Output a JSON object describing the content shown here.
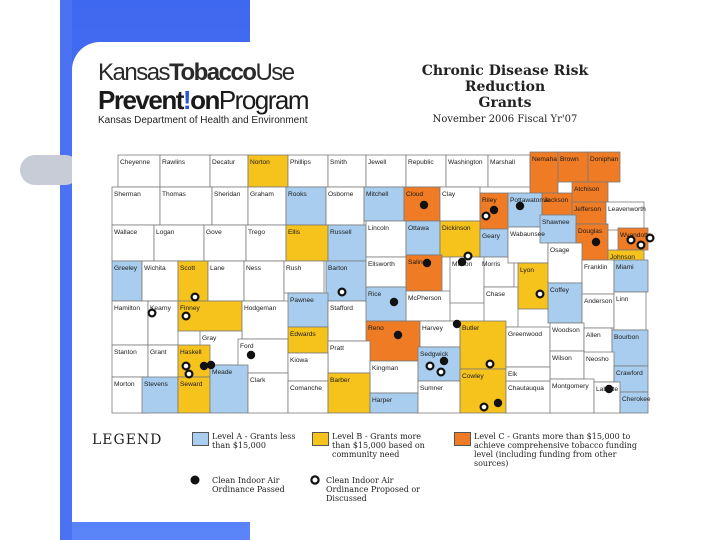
{
  "header": {
    "logo_word1": "Kansas",
    "logo_word2": "Tobacco",
    "logo_word3": "Use",
    "logo_word4": "Prevent",
    "logo_bang": "!",
    "logo_word5": "on",
    "logo_word6": "Program",
    "logo_sub": "Kansas Department of Health and Environment",
    "title_line1": "Chronic Disease Risk Reduction",
    "title_line2": "Grants",
    "title_line3": "November 2006 Fiscal Yr'07"
  },
  "colors": {
    "level_a": "#a9cdee",
    "level_b": "#f6c21c",
    "level_c": "#ef7b24",
    "unfunded": "#ffffff",
    "border": "#7a7a7a",
    "slide_blue": "#4a72f2"
  },
  "legend": {
    "title": "LEGEND",
    "level_a": "Level A - Grants less than $15,000",
    "level_b": "Level B - Grants more than $15,000 based on community need",
    "level_c": "Level C - Grants more than $15,000 to achieve comprehensive tobacco funding level (including funding from other sources)",
    "passed": "Clean Indoor Air Ordinance Passed",
    "proposed": "Clean Indoor Air Ordinance Proposed or Discussed"
  },
  "counties": [
    {
      "name": "Cheyenne",
      "level": "none"
    },
    {
      "name": "Rawlins",
      "level": "none"
    },
    {
      "name": "Decatur",
      "level": "none"
    },
    {
      "name": "Norton",
      "level": "B"
    },
    {
      "name": "Phillips",
      "level": "none"
    },
    {
      "name": "Smith",
      "level": "none"
    },
    {
      "name": "Jewell",
      "level": "none"
    },
    {
      "name": "Republic",
      "level": "none"
    },
    {
      "name": "Washington",
      "level": "none"
    },
    {
      "name": "Marshall",
      "level": "none"
    },
    {
      "name": "Nemaha",
      "level": "C"
    },
    {
      "name": "Brown",
      "level": "C"
    },
    {
      "name": "Doniphan",
      "level": "C"
    },
    {
      "name": "Sherman",
      "level": "none"
    },
    {
      "name": "Thomas",
      "level": "none"
    },
    {
      "name": "Sheridan",
      "level": "none"
    },
    {
      "name": "Graham",
      "level": "none"
    },
    {
      "name": "Rooks",
      "level": "A"
    },
    {
      "name": "Osborne",
      "level": "none"
    },
    {
      "name": "Mitchell",
      "level": "A"
    },
    {
      "name": "Cloud",
      "level": "C"
    },
    {
      "name": "Clay",
      "level": "none"
    },
    {
      "name": "Riley",
      "level": "C"
    },
    {
      "name": "Pottawatomie",
      "level": "A"
    },
    {
      "name": "Jackson",
      "level": "C"
    },
    {
      "name": "Atchison",
      "level": "C"
    },
    {
      "name": "Jefferson",
      "level": "C"
    },
    {
      "name": "Leavenworth",
      "level": "none"
    },
    {
      "name": "Wyandotte",
      "level": "C"
    },
    {
      "name": "Wallace",
      "level": "none"
    },
    {
      "name": "Logan",
      "level": "none"
    },
    {
      "name": "Gove",
      "level": "none"
    },
    {
      "name": "Trego",
      "level": "none"
    },
    {
      "name": "Ellis",
      "level": "B"
    },
    {
      "name": "Russell",
      "level": "A"
    },
    {
      "name": "Lincoln",
      "level": "none"
    },
    {
      "name": "Ottawa",
      "level": "A"
    },
    {
      "name": "Dickinson",
      "level": "B"
    },
    {
      "name": "Geary",
      "level": "A"
    },
    {
      "name": "Morris",
      "level": "none"
    },
    {
      "name": "Wabaunsee",
      "level": "none"
    },
    {
      "name": "Shawnee",
      "level": "A"
    },
    {
      "name": "Douglas",
      "level": "C"
    },
    {
      "name": "Johnson",
      "level": "B"
    },
    {
      "name": "Greeley",
      "level": "A"
    },
    {
      "name": "Wichita",
      "level": "none"
    },
    {
      "name": "Scott",
      "level": "B"
    },
    {
      "name": "Lane",
      "level": "none"
    },
    {
      "name": "Ness",
      "level": "none"
    },
    {
      "name": "Rush",
      "level": "none"
    },
    {
      "name": "Barton",
      "level": "A"
    },
    {
      "name": "Ellsworth",
      "level": "none"
    },
    {
      "name": "Saline",
      "level": "C"
    },
    {
      "name": "McPherson",
      "level": "none"
    },
    {
      "name": "Marion",
      "level": "none"
    },
    {
      "name": "Chase",
      "level": "none"
    },
    {
      "name": "Lyon",
      "level": "B"
    },
    {
      "name": "Osage",
      "level": "none"
    },
    {
      "name": "Franklin",
      "level": "none"
    },
    {
      "name": "Miami",
      "level": "A"
    },
    {
      "name": "Hamilton",
      "level": "none"
    },
    {
      "name": "Kearny",
      "level": "none"
    },
    {
      "name": "Finney",
      "level": "B"
    },
    {
      "name": "Hodgeman",
      "level": "none"
    },
    {
      "name": "Pawnee",
      "level": "A"
    },
    {
      "name": "Stafford",
      "level": "none"
    },
    {
      "name": "Rice",
      "level": "A"
    },
    {
      "name": "Reno",
      "level": "C"
    },
    {
      "name": "Harvey",
      "level": "none"
    },
    {
      "name": "Butler",
      "level": "B"
    },
    {
      "name": "Greenwood",
      "level": "none"
    },
    {
      "name": "Coffey",
      "level": "A"
    },
    {
      "name": "Anderson",
      "level": "none"
    },
    {
      "name": "Linn",
      "level": "none"
    },
    {
      "name": "Gray",
      "level": "none"
    },
    {
      "name": "Ford",
      "level": "none"
    },
    {
      "name": "Edwards",
      "level": "B"
    },
    {
      "name": "Pratt",
      "level": "none"
    },
    {
      "name": "Kingman",
      "level": "none"
    },
    {
      "name": "Sedgwick",
      "level": "A"
    },
    {
      "name": "Woodson",
      "level": "none"
    },
    {
      "name": "Allen",
      "level": "none"
    },
    {
      "name": "Bourbon",
      "level": "A"
    },
    {
      "name": "Stanton",
      "level": "none"
    },
    {
      "name": "Grant",
      "level": "none"
    },
    {
      "name": "Haskell",
      "level": "B"
    },
    {
      "name": "Kiowa",
      "level": "none"
    },
    {
      "name": "Wilson",
      "level": "none"
    },
    {
      "name": "Neosho",
      "level": "none"
    },
    {
      "name": "Crawford",
      "level": "A"
    },
    {
      "name": "Morton",
      "level": "none"
    },
    {
      "name": "Stevens",
      "level": "A"
    },
    {
      "name": "Seward",
      "level": "B"
    },
    {
      "name": "Meade",
      "level": "A"
    },
    {
      "name": "Clark",
      "level": "none"
    },
    {
      "name": "Comanche",
      "level": "none"
    },
    {
      "name": "Barber",
      "level": "B"
    },
    {
      "name": "Harper",
      "level": "A"
    },
    {
      "name": "Sumner",
      "level": "none"
    },
    {
      "name": "Cowley",
      "level": "B"
    },
    {
      "name": "Chautauqua",
      "level": "none"
    },
    {
      "name": "Elk",
      "level": "none"
    },
    {
      "name": "Montgomery",
      "level": "none"
    },
    {
      "name": "Labette",
      "level": "none"
    },
    {
      "name": "Cherokee",
      "level": "A"
    }
  ],
  "ordinance_markers": [
    {
      "type": "passed",
      "near": "Cloud"
    },
    {
      "type": "proposed",
      "near": "Riley"
    },
    {
      "type": "passed",
      "near": "Riley"
    },
    {
      "type": "passed",
      "near": "Pottawatomie"
    },
    {
      "type": "passed",
      "near": "Saline"
    },
    {
      "type": "passed",
      "near": "Dickinson"
    },
    {
      "type": "proposed",
      "near": "Dickinson"
    },
    {
      "type": "passed",
      "near": "Douglas"
    },
    {
      "type": "proposed",
      "near": "Wyandotte"
    },
    {
      "type": "proposed",
      "near": "Johnson"
    },
    {
      "type": "proposed",
      "near": "Johnson"
    },
    {
      "type": "proposed",
      "near": "Lyon"
    },
    {
      "type": "proposed",
      "near": "Scott"
    },
    {
      "type": "proposed",
      "near": "Barton"
    },
    {
      "type": "passed",
      "near": "Rice"
    },
    {
      "type": "passed",
      "near": "Reno"
    },
    {
      "type": "passed",
      "near": "Harvey"
    },
    {
      "type": "proposed",
      "near": "Sedgwick"
    },
    {
      "type": "passed",
      "near": "Sedgwick"
    },
    {
      "type": "proposed",
      "near": "Sedgwick"
    },
    {
      "type": "proposed",
      "near": "Butler"
    },
    {
      "type": "proposed",
      "near": "Finney"
    },
    {
      "type": "passed",
      "near": "Ford"
    },
    {
      "type": "passed",
      "near": "Gray"
    },
    {
      "type": "proposed",
      "near": "Haskell"
    },
    {
      "type": "proposed",
      "near": "Grant"
    },
    {
      "type": "passed",
      "near": "Seward"
    },
    {
      "type": "passed",
      "near": "Cowley"
    },
    {
      "type": "proposed",
      "near": "Cowley"
    },
    {
      "type": "passed",
      "near": "Labette"
    },
    {
      "type": "proposed",
      "near": "Kearny"
    }
  ]
}
